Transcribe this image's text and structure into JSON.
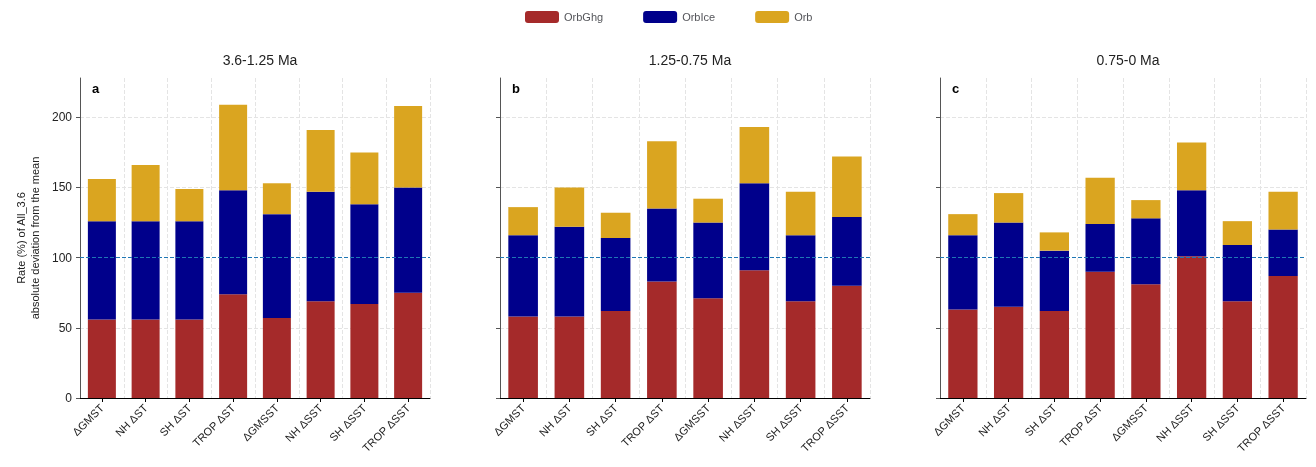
{
  "chart_data": [
    {
      "type": "bar",
      "title": "3.6-1.25 Ma",
      "ylabel": "Rate (%) of All_3.6\nabsolute deviation from the mean",
      "annotations": [
        "a"
      ],
      "stacked": true,
      "categories": [
        "ΔGMST",
        "NH ΔST",
        "SH ΔST",
        "TROP ΔST",
        "ΔGMSST",
        "NH ΔSST",
        "SH ΔSST",
        "TROP ΔSST"
      ],
      "series": [
        {
          "name": "OrbGhg",
          "color": "#a52a2a",
          "values": [
            56,
            56,
            56,
            74,
            57,
            69,
            67,
            75
          ]
        },
        {
          "name": "OrbIce",
          "color": "#00008b",
          "values": [
            70,
            70,
            70,
            74,
            74,
            78,
            71,
            75
          ]
        },
        {
          "name": "Orb",
          "color": "#daa520",
          "values": [
            30,
            40,
            23,
            61,
            22,
            44,
            37,
            58
          ]
        }
      ],
      "ylim": [
        0,
        228
      ],
      "yticks": [
        0,
        50,
        100,
        150,
        200
      ],
      "grid": true,
      "legend": "top",
      "ref_lines": [
        {
          "axis": "y",
          "value": 100,
          "color": "#1f77b4",
          "line_style": "dashed"
        }
      ]
    },
    {
      "type": "bar",
      "title": "1.25-0.75 Ma",
      "annotations": [
        "b"
      ],
      "stacked": true,
      "categories": [
        "ΔGMST",
        "NH ΔST",
        "SH ΔST",
        "TROP ΔST",
        "ΔGMSST",
        "NH ΔSST",
        "SH ΔSST",
        "TROP ΔSST"
      ],
      "series": [
        {
          "color": "#a52a2a",
          "values": [
            58,
            58,
            62,
            83,
            71,
            91,
            69,
            80
          ]
        },
        {
          "color": "#00008b",
          "values": [
            58,
            64,
            52,
            52,
            54,
            62,
            47,
            49
          ]
        },
        {
          "color": "#daa520",
          "values": [
            20,
            28,
            18,
            48,
            17,
            40,
            31,
            43
          ]
        }
      ],
      "ylim": [
        0,
        228
      ],
      "yticks": [
        0,
        50,
        100,
        150,
        200
      ],
      "grid": true,
      "tick_labels": "x",
      "ref_lines": [
        {
          "axis": "y",
          "value": 100,
          "color": "#1f77b4",
          "line_style": "dashed"
        }
      ]
    },
    {
      "type": "bar",
      "title": "0.75-0 Ma",
      "annotations": [
        "c"
      ],
      "stacked": true,
      "categories": [
        "ΔGMST",
        "NH ΔST",
        "SH ΔST",
        "TROP ΔST",
        "ΔGMSST",
        "NH ΔSST",
        "SH ΔSST",
        "TROP ΔSST"
      ],
      "series": [
        {
          "color": "#a52a2a",
          "values": [
            63,
            65,
            62,
            90,
            81,
            101,
            69,
            87
          ]
        },
        {
          "color": "#00008b",
          "values": [
            53,
            60,
            43,
            34,
            47,
            47,
            40,
            33
          ]
        },
        {
          "color": "#daa520",
          "values": [
            15,
            21,
            13,
            33,
            13,
            34,
            17,
            27
          ]
        }
      ],
      "ylim": [
        0,
        228
      ],
      "yticks": [
        0,
        50,
        100,
        150,
        200
      ],
      "grid": true,
      "tick_labels": "x",
      "ref_lines": [
        {
          "axis": "y",
          "value": 100,
          "color": "#1f77b4",
          "line_style": "dashed"
        }
      ]
    }
  ]
}
